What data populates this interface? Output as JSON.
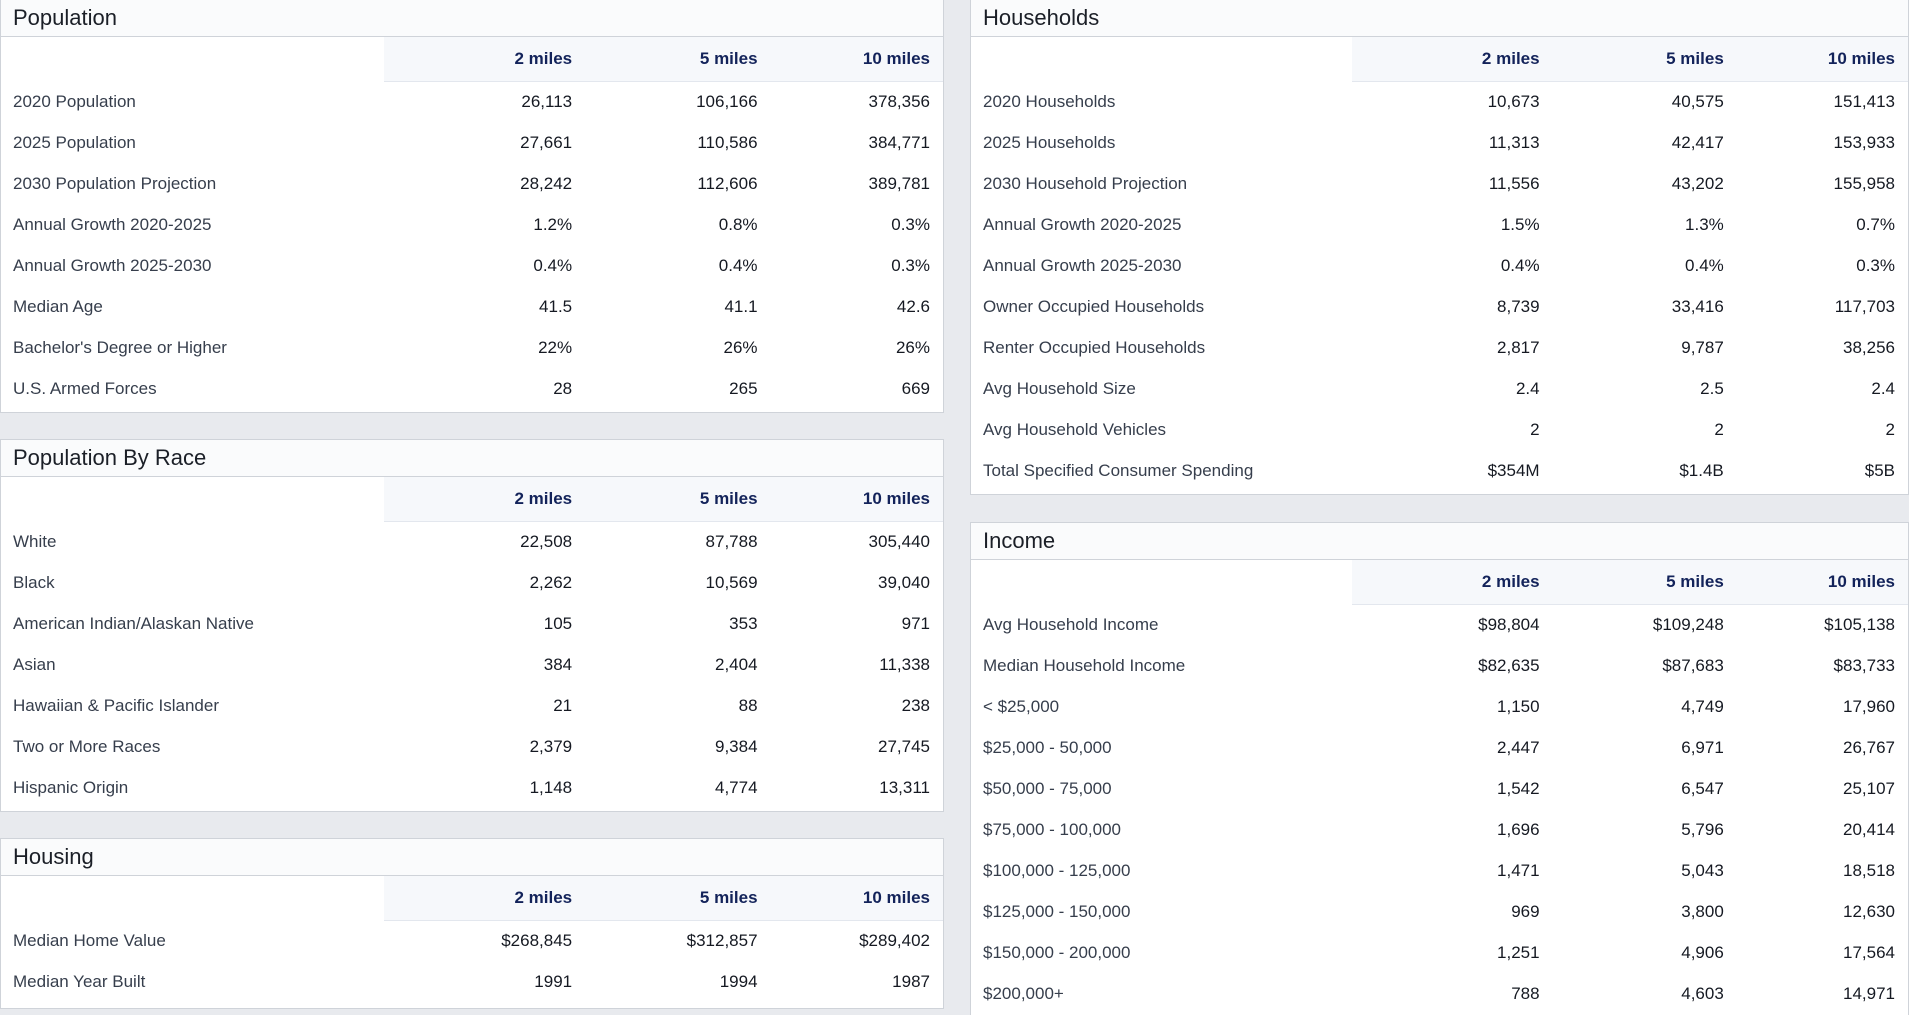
{
  "columns": [
    "2 miles",
    "5 miles",
    "10 miles"
  ],
  "population": {
    "title": "Population",
    "rows": [
      {
        "label": "2020 Population",
        "values": [
          "26,113",
          "106,166",
          "378,356"
        ]
      },
      {
        "label": "2025 Population",
        "values": [
          "27,661",
          "110,586",
          "384,771"
        ]
      },
      {
        "label": "2030 Population Projection",
        "values": [
          "28,242",
          "112,606",
          "389,781"
        ]
      },
      {
        "label": "Annual Growth 2020-2025",
        "values": [
          "1.2%",
          "0.8%",
          "0.3%"
        ]
      },
      {
        "label": "Annual Growth 2025-2030",
        "values": [
          "0.4%",
          "0.4%",
          "0.3%"
        ]
      },
      {
        "label": "Median Age",
        "values": [
          "41.5",
          "41.1",
          "42.6"
        ]
      },
      {
        "label": "Bachelor's Degree or Higher",
        "values": [
          "22%",
          "26%",
          "26%"
        ]
      },
      {
        "label": "U.S. Armed Forces",
        "values": [
          "28",
          "265",
          "669"
        ]
      }
    ]
  },
  "population_by_race": {
    "title": "Population By Race",
    "rows": [
      {
        "label": "White",
        "values": [
          "22,508",
          "87,788",
          "305,440"
        ]
      },
      {
        "label": "Black",
        "values": [
          "2,262",
          "10,569",
          "39,040"
        ]
      },
      {
        "label": "American Indian/Alaskan Native",
        "values": [
          "105",
          "353",
          "971"
        ]
      },
      {
        "label": "Asian",
        "values": [
          "384",
          "2,404",
          "11,338"
        ]
      },
      {
        "label": "Hawaiian & Pacific Islander",
        "values": [
          "21",
          "88",
          "238"
        ]
      },
      {
        "label": "Two or More Races",
        "values": [
          "2,379",
          "9,384",
          "27,745"
        ]
      },
      {
        "label": "Hispanic Origin",
        "values": [
          "1,148",
          "4,774",
          "13,311"
        ]
      }
    ]
  },
  "housing": {
    "title": "Housing",
    "rows": [
      {
        "label": "Median Home Value",
        "values": [
          "$268,845",
          "$312,857",
          "$289,402"
        ]
      },
      {
        "label": "Median Year Built",
        "values": [
          "1991",
          "1994",
          "1987"
        ]
      }
    ]
  },
  "households": {
    "title": "Households",
    "rows": [
      {
        "label": "2020 Households",
        "values": [
          "10,673",
          "40,575",
          "151,413"
        ]
      },
      {
        "label": "2025 Households",
        "values": [
          "11,313",
          "42,417",
          "153,933"
        ]
      },
      {
        "label": "2030 Household Projection",
        "values": [
          "11,556",
          "43,202",
          "155,958"
        ]
      },
      {
        "label": "Annual Growth 2020-2025",
        "values": [
          "1.5%",
          "1.3%",
          "0.7%"
        ]
      },
      {
        "label": "Annual Growth 2025-2030",
        "values": [
          "0.4%",
          "0.4%",
          "0.3%"
        ]
      },
      {
        "label": "Owner Occupied Households",
        "values": [
          "8,739",
          "33,416",
          "117,703"
        ]
      },
      {
        "label": "Renter Occupied Households",
        "values": [
          "2,817",
          "9,787",
          "38,256"
        ]
      },
      {
        "label": "Avg Household Size",
        "values": [
          "2.4",
          "2.5",
          "2.4"
        ]
      },
      {
        "label": "Avg Household Vehicles",
        "values": [
          "2",
          "2",
          "2"
        ]
      },
      {
        "label": "Total Specified Consumer Spending",
        "values": [
          "$354M",
          "$1.4B",
          "$5B"
        ]
      }
    ]
  },
  "income": {
    "title": "Income",
    "rows": [
      {
        "label": "Avg Household Income",
        "values": [
          "$98,804",
          "$109,248",
          "$105,138"
        ]
      },
      {
        "label": "Median Household Income",
        "values": [
          "$82,635",
          "$87,683",
          "$83,733"
        ]
      },
      {
        "label": "< $25,000",
        "values": [
          "1,150",
          "4,749",
          "17,960"
        ]
      },
      {
        "label": "$25,000 - 50,000",
        "values": [
          "2,447",
          "6,971",
          "26,767"
        ]
      },
      {
        "label": "$50,000 - 75,000",
        "values": [
          "1,542",
          "6,547",
          "25,107"
        ]
      },
      {
        "label": "$75,000 - 100,000",
        "values": [
          "1,696",
          "5,796",
          "20,414"
        ]
      },
      {
        "label": "$100,000 - 125,000",
        "values": [
          "1,471",
          "5,043",
          "18,518"
        ]
      },
      {
        "label": "$125,000 - 150,000",
        "values": [
          "969",
          "3,800",
          "12,630"
        ]
      },
      {
        "label": "$150,000 - 200,000",
        "values": [
          "1,251",
          "4,906",
          "17,564"
        ]
      },
      {
        "label": "$200,000+",
        "values": [
          "788",
          "4,603",
          "14,971"
        ]
      }
    ]
  }
}
